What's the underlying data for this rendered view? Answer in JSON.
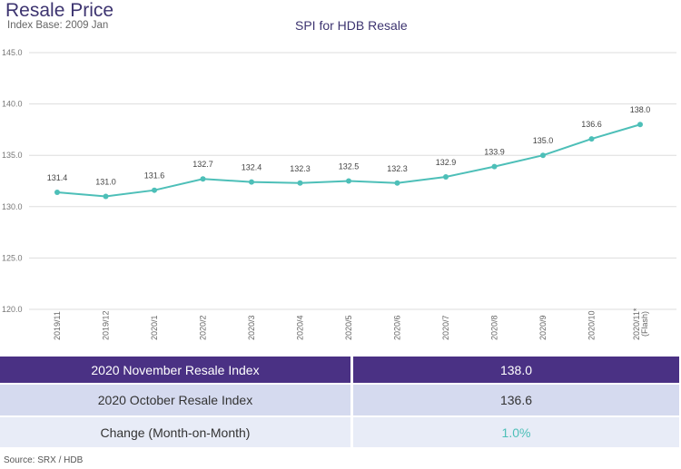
{
  "header": {
    "title": "Resale Price",
    "subtitle": "Index Base: 2009 Jan"
  },
  "chart_data": {
    "type": "line",
    "title": "SPI for HDB Resale",
    "xlabel": "",
    "ylabel": "",
    "categories": [
      "2019/11",
      "2019/12",
      "2020/1",
      "2020/2",
      "2020/3",
      "2020/4",
      "2020/5",
      "2020/6",
      "2020/7",
      "2020/8",
      "2020/9",
      "2020/10",
      "2020/11* (Flash)"
    ],
    "values": [
      131.4,
      131.0,
      131.6,
      132.7,
      132.4,
      132.3,
      132.5,
      132.3,
      132.9,
      133.9,
      135.0,
      136.6,
      138.0
    ],
    "labels": [
      "131.4",
      "131.0",
      "131.6",
      "132.7",
      "132.4",
      "132.3",
      "132.5",
      "132.3",
      "132.9",
      "133.9",
      "135.0",
      "136.6",
      "138.0"
    ],
    "ylim": [
      120,
      145
    ],
    "yticks": [
      "120.0",
      "125.0",
      "130.0",
      "135.0",
      "140.0",
      "145.0"
    ],
    "grid": true,
    "color": "#4dbfb8"
  },
  "table": {
    "rows": [
      {
        "label": "2020 November Resale Index",
        "value": "138.0"
      },
      {
        "label": "2020 October Resale Index",
        "value": "136.6"
      },
      {
        "label": "Change (Month-on-Month)",
        "value": "1.0%"
      }
    ]
  },
  "source": "Source: SRX / HDB"
}
